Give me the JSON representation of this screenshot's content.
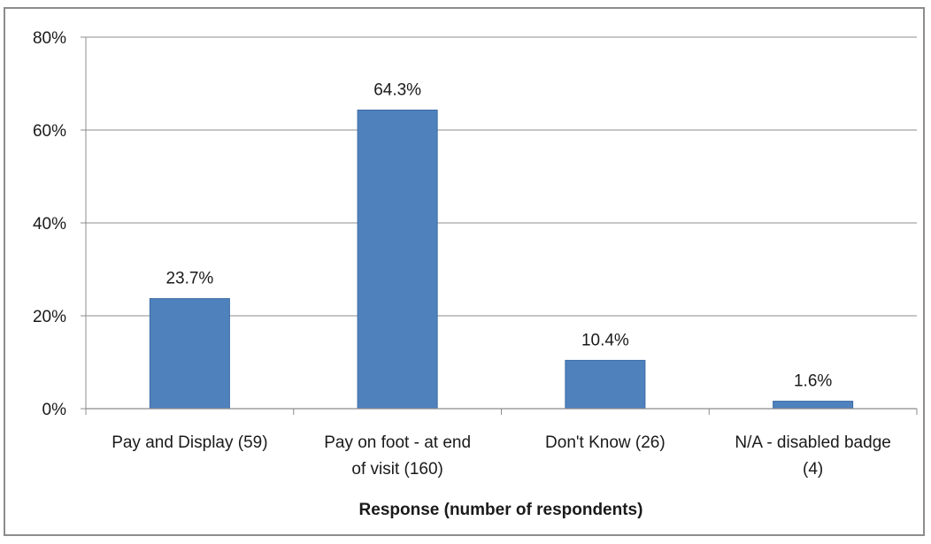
{
  "chart_data": {
    "type": "bar",
    "categories": [
      "Pay and Display (59)",
      "Pay on foot - at end of visit (160)",
      "Don't Know (26)",
      "N/A - disabled badge (4)"
    ],
    "category_lines": [
      [
        "Pay and Display (59)"
      ],
      [
        "Pay on foot - at end",
        "of visit (160)"
      ],
      [
        "Don't Know (26)"
      ],
      [
        "N/A - disabled badge",
        "(4)"
      ]
    ],
    "values": [
      23.7,
      64.3,
      10.4,
      1.6
    ],
    "data_labels": [
      "23.7%",
      "64.3%",
      "10.4%",
      "1.6%"
    ],
    "title": "",
    "xlabel": "Response (number of respondents)",
    "ylabel": "",
    "ylim": [
      0,
      80
    ],
    "yticks": [
      0,
      20,
      40,
      60,
      80
    ],
    "ytick_labels": [
      "0%",
      "20%",
      "40%",
      "60%",
      "80%"
    ],
    "grid": true,
    "legend": "none",
    "colors": {
      "bar": "#4f81bd",
      "bar_edge": "#3a6aa5",
      "grid": "#8c8c8c",
      "frame": "#8c8c8c"
    }
  }
}
